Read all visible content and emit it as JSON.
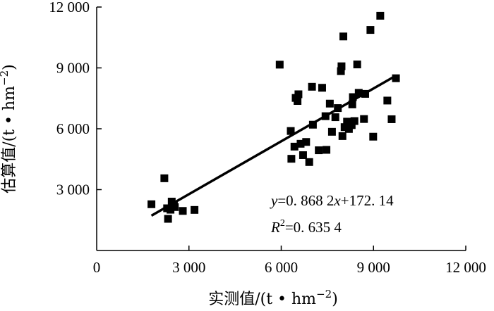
{
  "chart_data": {
    "type": "scatter",
    "xlabel": "实测值/(t • hm",
    "ylabel": "估算值/(t • hm",
    "unit_exponent": "−2",
    "unit_close": ")",
    "xlim": [
      0,
      12000
    ],
    "ylim": [
      0,
      12000
    ],
    "xticks": [
      {
        "value": 0,
        "label": "0"
      },
      {
        "value": 3000,
        "label": "3 000"
      },
      {
        "value": 6000,
        "label": "6 000"
      },
      {
        "value": 9000,
        "label": "9 000"
      },
      {
        "value": 12000,
        "label": "12 000"
      }
    ],
    "yticks": [
      {
        "value": 3000,
        "label": "3 000"
      },
      {
        "value": 6000,
        "label": "6 000"
      },
      {
        "value": 9000,
        "label": "9 000"
      },
      {
        "value": 12000,
        "label": "12 000"
      }
    ],
    "grid": false,
    "points": [
      {
        "x": 1780,
        "y": 2280
      },
      {
        "x": 2200,
        "y": 3560
      },
      {
        "x": 2290,
        "y": 2080
      },
      {
        "x": 2320,
        "y": 1560
      },
      {
        "x": 2400,
        "y": 2010
      },
      {
        "x": 2440,
        "y": 2410
      },
      {
        "x": 2510,
        "y": 2240
      },
      {
        "x": 2540,
        "y": 2140
      },
      {
        "x": 2800,
        "y": 1950
      },
      {
        "x": 3180,
        "y": 2000
      },
      {
        "x": 5950,
        "y": 9160
      },
      {
        "x": 6310,
        "y": 5890
      },
      {
        "x": 6330,
        "y": 4520
      },
      {
        "x": 6430,
        "y": 5120
      },
      {
        "x": 6470,
        "y": 7520
      },
      {
        "x": 6530,
        "y": 7370
      },
      {
        "x": 6560,
        "y": 7700
      },
      {
        "x": 6630,
        "y": 5260
      },
      {
        "x": 6710,
        "y": 4700
      },
      {
        "x": 6810,
        "y": 5350
      },
      {
        "x": 6910,
        "y": 4360
      },
      {
        "x": 7000,
        "y": 8070
      },
      {
        "x": 7030,
        "y": 6200
      },
      {
        "x": 7220,
        "y": 4940
      },
      {
        "x": 7330,
        "y": 8020
      },
      {
        "x": 7440,
        "y": 6620
      },
      {
        "x": 7470,
        "y": 4960
      },
      {
        "x": 7580,
        "y": 7240
      },
      {
        "x": 7650,
        "y": 5850
      },
      {
        "x": 7760,
        "y": 6570
      },
      {
        "x": 7840,
        "y": 7020
      },
      {
        "x": 7940,
        "y": 8840
      },
      {
        "x": 7960,
        "y": 9080
      },
      {
        "x": 7990,
        "y": 5640
      },
      {
        "x": 8020,
        "y": 10550
      },
      {
        "x": 8060,
        "y": 6080
      },
      {
        "x": 8140,
        "y": 6350
      },
      {
        "x": 8200,
        "y": 5990
      },
      {
        "x": 8290,
        "y": 6180
      },
      {
        "x": 8310,
        "y": 7200
      },
      {
        "x": 8330,
        "y": 7560
      },
      {
        "x": 8380,
        "y": 6380
      },
      {
        "x": 8470,
        "y": 9170
      },
      {
        "x": 8520,
        "y": 7770
      },
      {
        "x": 8690,
        "y": 6480
      },
      {
        "x": 8730,
        "y": 7720
      },
      {
        "x": 8900,
        "y": 10870
      },
      {
        "x": 8990,
        "y": 5610
      },
      {
        "x": 9220,
        "y": 11570
      },
      {
        "x": 9450,
        "y": 7390
      },
      {
        "x": 9590,
        "y": 6470
      },
      {
        "x": 9730,
        "y": 8490
      }
    ],
    "regression": {
      "slope": 0.8682,
      "intercept": 172.14,
      "x_range": [
        1780,
        9730
      ],
      "equation_y": "y",
      "equation_rest": "=0. 868 2",
      "equation_x": "x",
      "equation_tail": "+172. 14",
      "r2_label": "R",
      "r2_sup": "2",
      "r2_rest": "=0. 635 4"
    }
  }
}
